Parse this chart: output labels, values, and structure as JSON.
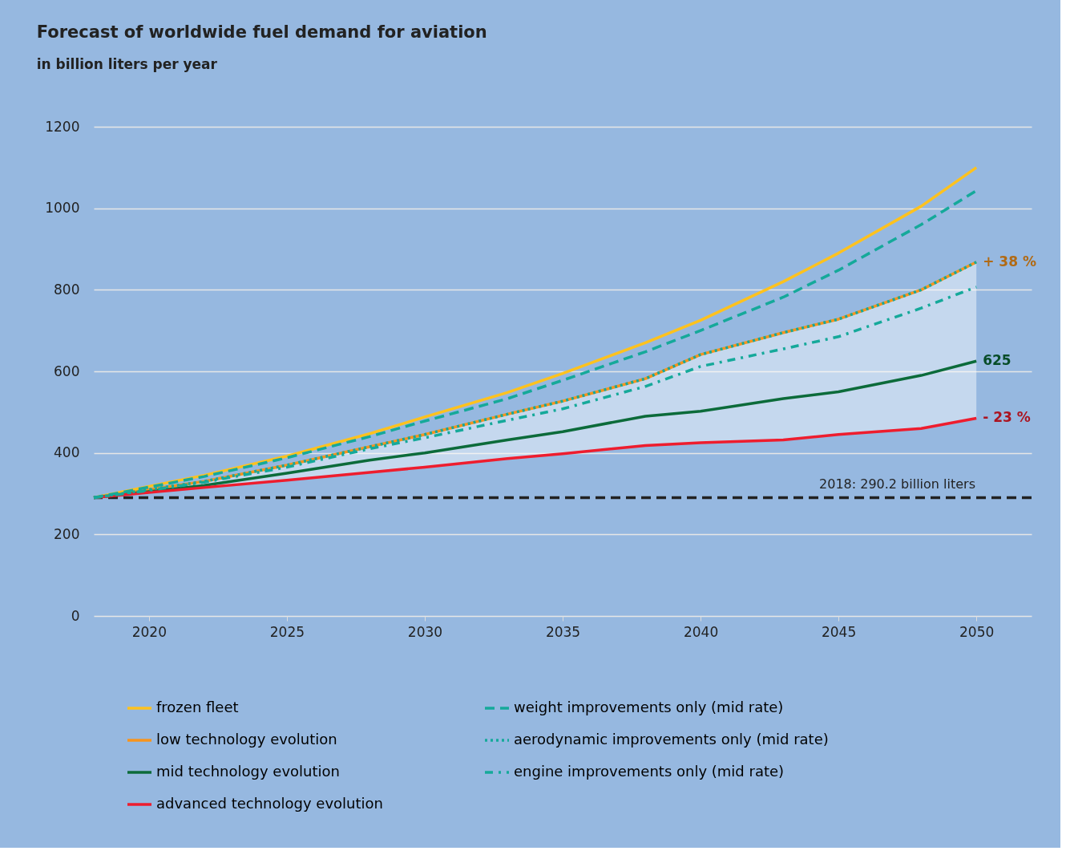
{
  "chart_data": {
    "type": "line",
    "title": "Forecast of worldwide fuel demand for aviation",
    "subtitle": "in billion liters per year",
    "x": [
      2018,
      2020,
      2022,
      2025,
      2028,
      2030,
      2033,
      2035,
      2038,
      2040,
      2043,
      2045,
      2048,
      2050
    ],
    "xlim": [
      2018,
      2052
    ],
    "xticks": [
      2020,
      2025,
      2030,
      2035,
      2040,
      2045,
      2050
    ],
    "ylim": [
      0,
      1200
    ],
    "yticks": [
      0,
      200,
      400,
      600,
      800,
      {
        "value": 1000,
        "label": "1000"
      },
      {
        "value": 1200,
        "label": "1200"
      }
    ],
    "grid": "y",
    "legend": "bottom",
    "series": [
      {
        "name": "frozen fleet",
        "color": "#ffc21e",
        "line_style": "solid",
        "values": [
          290,
          318,
          345,
          392,
          447,
          488,
          548,
          595,
          670,
          725,
          820,
          890,
          1005,
          1100
        ]
      },
      {
        "name": "low technology evolution",
        "color": "#f7941d",
        "line_style": "solid",
        "values": [
          290,
          310,
          330,
          370,
          415,
          445,
          495,
          527,
          582,
          641,
          695,
          728,
          800,
          868
        ]
      },
      {
        "name": "mid technology evolution",
        "color": "#0c6b3a",
        "line_style": "solid",
        "values": [
          290,
          305,
          320,
          350,
          382,
          400,
          432,
          452,
          490,
          502,
          533,
          550,
          590,
          625
        ],
        "value_labels": [
          null,
          null,
          null,
          null,
          null,
          null,
          null,
          null,
          null,
          null,
          null,
          null,
          null,
          "625"
        ],
        "lower": [
          290,
          303,
          315,
          333,
          352,
          365,
          386,
          398,
          418,
          425,
          432,
          445,
          460,
          485
        ],
        "upper": [
          290,
          310,
          330,
          370,
          415,
          445,
          495,
          527,
          582,
          641,
          695,
          728,
          800,
          868
        ]
      },
      {
        "name": "advanced technology evolution",
        "color": "#ee1d2e",
        "line_style": "solid",
        "values": [
          290,
          303,
          315,
          333,
          352,
          365,
          386,
          398,
          418,
          425,
          432,
          445,
          460,
          485
        ]
      },
      {
        "name": "weight improvements only (mid rate)",
        "color": "#15a99a",
        "line_style": "dashed",
        "values": [
          290,
          316,
          342,
          388,
          440,
          478,
          533,
          578,
          648,
          700,
          782,
          848,
          960,
          1043
        ]
      },
      {
        "name": "aerodynamic improvements only (mid rate)",
        "color": "#15a99a",
        "line_style": "dotted",
        "values": [
          290,
          310,
          330,
          370,
          415,
          445,
          495,
          527,
          582,
          641,
          695,
          728,
          800,
          868
        ]
      },
      {
        "name": "engine improvements only (mid rate)",
        "color": "#15a99a",
        "line_style": "dashdot",
        "values": [
          290,
          308,
          328,
          365,
          410,
          437,
          480,
          508,
          563,
          612,
          655,
          685,
          755,
          807
        ]
      }
    ],
    "ref_lines": [
      {
        "axis": "y",
        "value": 290.2,
        "label": "2018: 290.2 billion liters",
        "color": "#222222",
        "line_style": "dashed"
      }
    ],
    "annotations": [
      {
        "text": "+ 38 %",
        "x": 2050,
        "y": 868
      },
      {
        "text": "- 23 %",
        "x": 2050,
        "y": 485
      }
    ]
  }
}
